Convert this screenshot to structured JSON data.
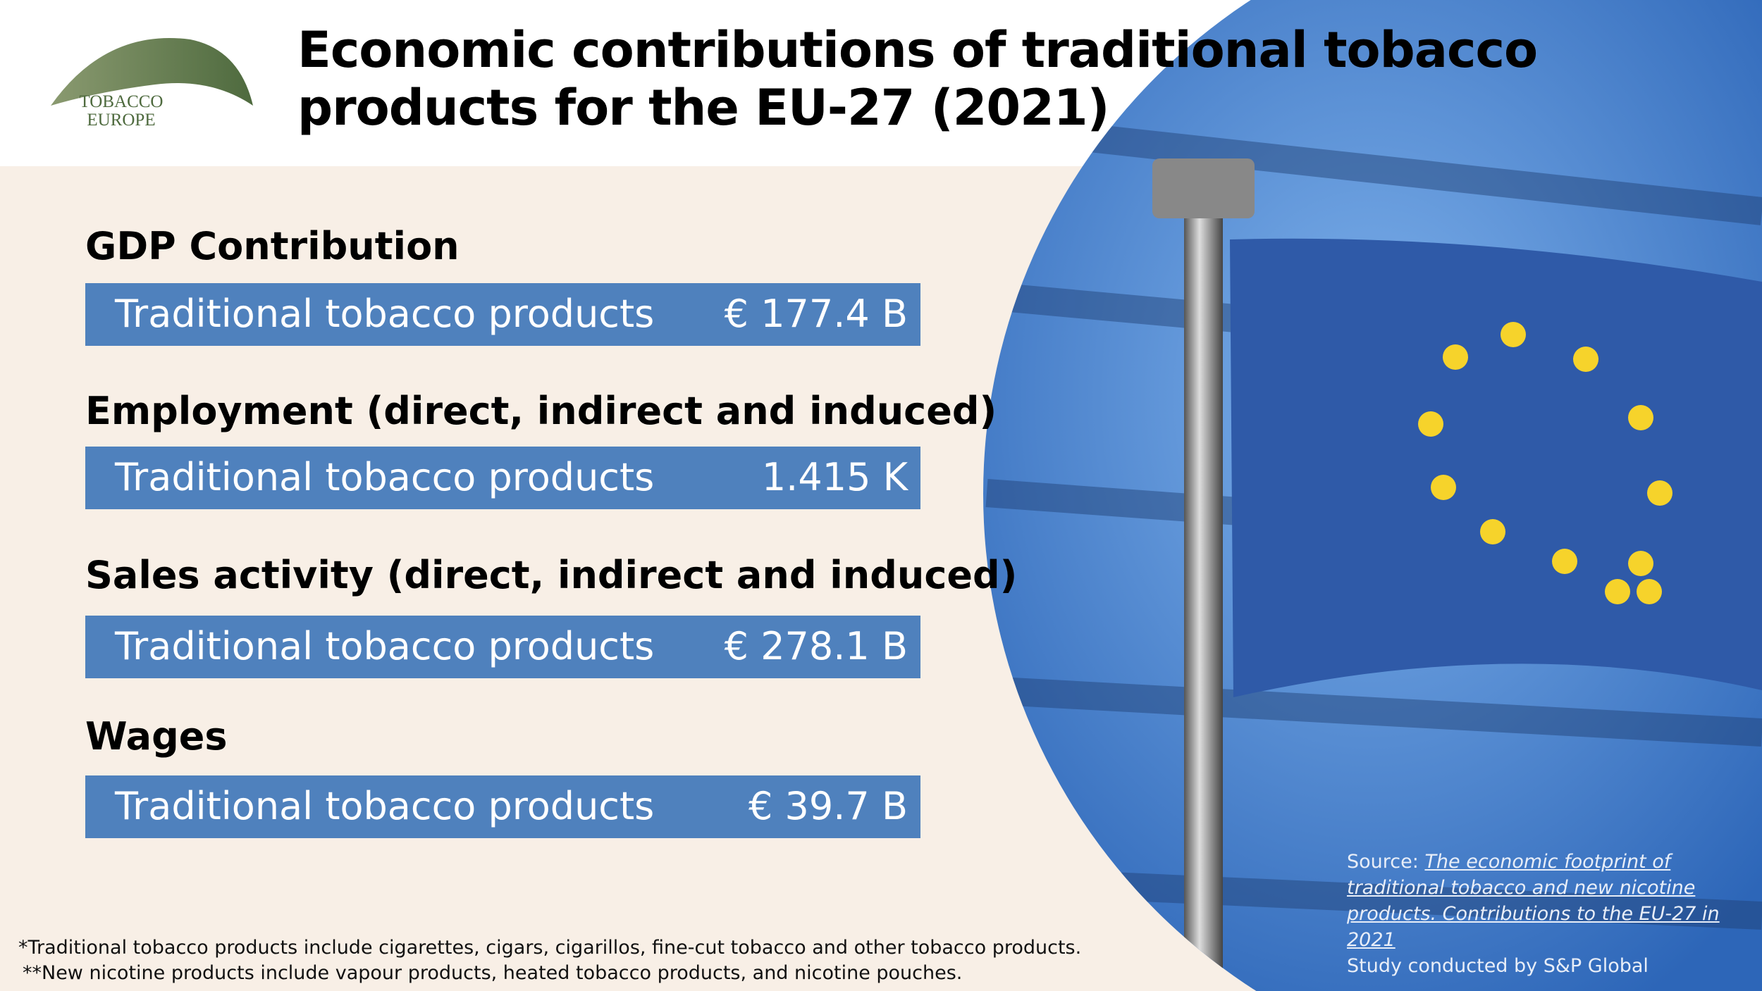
{
  "header": {
    "title": "Economic contributions of traditional tobacco products for the EU-27 (2021)",
    "logo": {
      "line1": "TOBACCO",
      "line2": "EUROPE"
    }
  },
  "sections": [
    {
      "heading": "GDP Contribution",
      "label": "Traditional tobacco products",
      "value": "€ 177.4 B"
    },
    {
      "heading": "Employment (direct, indirect and induced)",
      "label": "Traditional tobacco products",
      "value": "1.415 K"
    },
    {
      "heading": "Sales activity (direct, indirect and induced)",
      "label": "Traditional tobacco products",
      "value": "€ 278.1 B"
    },
    {
      "heading": "Wages",
      "label": "Traditional tobacco products",
      "value": "€ 39.7 B"
    }
  ],
  "footnotes": [
    "*Traditional tobacco products include cigarettes, cigars, cigarillos, fine-cut tobacco and other tobacco products.",
    "**New nicotine products include vapour products, heated tobacco products, and nicotine pouches."
  ],
  "source": {
    "prefix": "Source:",
    "link": "The economic footprint of traditional tobacco and new nicotine products. Contributions to the EU-27 in 2021",
    "credit": "Study conducted by S&P Global"
  }
}
